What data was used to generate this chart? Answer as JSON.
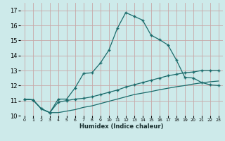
{
  "background_color": "#cdeaea",
  "grid_color": "#c8a8a8",
  "line_color": "#1a6b6b",
  "x_label": "Humidex (Indice chaleur)",
  "xlim": [
    -0.5,
    23.5
  ],
  "ylim": [
    10.0,
    17.5
  ],
  "yticks": [
    10,
    11,
    12,
    13,
    14,
    15,
    16,
    17
  ],
  "xticks": [
    0,
    1,
    2,
    3,
    4,
    5,
    6,
    7,
    8,
    9,
    10,
    11,
    12,
    13,
    14,
    15,
    16,
    17,
    18,
    19,
    20,
    21,
    22,
    23
  ],
  "series1_x": [
    0,
    1,
    2,
    3,
    4,
    5,
    6,
    7,
    8,
    9,
    10,
    11,
    12,
    13,
    14,
    15,
    16,
    17,
    18,
    19,
    20,
    21,
    22,
    23
  ],
  "series1_y": [
    11.1,
    11.05,
    10.45,
    10.2,
    11.1,
    11.1,
    11.85,
    12.8,
    12.85,
    13.5,
    14.35,
    15.8,
    16.85,
    16.6,
    16.35,
    15.35,
    15.05,
    14.7,
    13.7,
    12.55,
    12.5,
    12.2,
    12.05,
    12.0
  ],
  "series2_x": [
    0,
    1,
    2,
    3,
    4,
    5,
    6,
    7,
    8,
    9,
    10,
    11,
    12,
    13,
    14,
    15,
    16,
    17,
    18,
    19,
    20,
    21,
    22,
    23
  ],
  "series2_y": [
    11.1,
    11.05,
    10.45,
    10.2,
    10.9,
    11.0,
    11.1,
    11.15,
    11.25,
    11.4,
    11.55,
    11.7,
    11.9,
    12.05,
    12.2,
    12.35,
    12.5,
    12.65,
    12.75,
    12.85,
    12.9,
    13.0,
    13.0,
    13.0
  ],
  "series3_x": [
    0,
    1,
    2,
    3,
    4,
    5,
    6,
    7,
    8,
    9,
    10,
    11,
    12,
    13,
    14,
    15,
    16,
    17,
    18,
    19,
    20,
    21,
    22,
    23
  ],
  "series3_y": [
    11.1,
    11.05,
    10.45,
    10.2,
    10.2,
    10.3,
    10.4,
    10.55,
    10.65,
    10.8,
    10.95,
    11.1,
    11.25,
    11.4,
    11.5,
    11.6,
    11.72,
    11.82,
    11.92,
    12.0,
    12.1,
    12.18,
    12.25,
    12.3
  ]
}
